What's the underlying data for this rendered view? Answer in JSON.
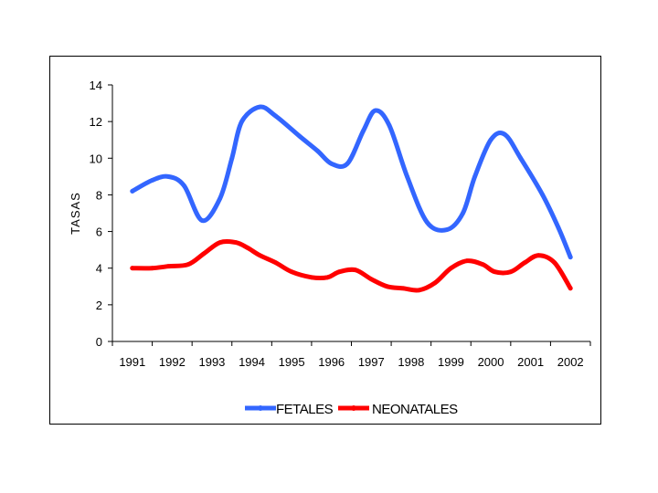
{
  "chart_data": {
    "type": "line",
    "title": "",
    "xlabel": "",
    "ylabel": "TASAS",
    "ylim": [
      0,
      14
    ],
    "yticks": [
      0,
      2,
      4,
      6,
      8,
      10,
      12,
      14
    ],
    "categories": [
      "1991",
      "1992",
      "1993",
      "1994",
      "1995",
      "1996",
      "1997",
      "1998",
      "1999",
      "2000",
      "2001",
      "2002"
    ],
    "grid": false,
    "legend_position": "bottom",
    "smooth": true,
    "series": [
      {
        "name": "FETALES",
        "color": "#3366ff",
        "x": [
          1991.0,
          1991.5,
          1991.9,
          1992.3,
          1992.75,
          1993.2,
          1993.5,
          1993.75,
          1994.2,
          1994.6,
          1995.2,
          1995.65,
          1996.0,
          1996.4,
          1996.8,
          1997.1,
          1997.45,
          1997.9,
          1998.4,
          1998.9,
          1999.3,
          1999.6,
          2000.0,
          2000.35,
          2000.75,
          2001.3,
          2001.7,
          2002.0
        ],
        "values": [
          8.2,
          8.8,
          9.0,
          8.5,
          6.6,
          7.8,
          10.0,
          12.0,
          12.8,
          12.3,
          11.2,
          10.4,
          9.7,
          9.7,
          11.5,
          12.6,
          11.8,
          9.0,
          6.5,
          6.1,
          7.0,
          9.0,
          11.0,
          11.3,
          10.0,
          8.0,
          6.2,
          4.6
        ]
      },
      {
        "name": "NEONATALES",
        "color": "#ff0000",
        "x": [
          1991.0,
          1991.5,
          1991.9,
          1992.4,
          1992.8,
          1993.2,
          1993.6,
          1993.9,
          1994.2,
          1994.6,
          1995.0,
          1995.5,
          1995.9,
          1996.2,
          1996.6,
          1997.0,
          1997.4,
          1997.8,
          1998.2,
          1998.6,
          1999.0,
          1999.4,
          1999.8,
          2000.1,
          2000.5,
          2000.85,
          2001.2,
          2001.6,
          2002.0
        ],
        "values": [
          4.0,
          4.0,
          4.1,
          4.2,
          4.8,
          5.4,
          5.4,
          5.1,
          4.7,
          4.3,
          3.8,
          3.5,
          3.5,
          3.8,
          3.9,
          3.4,
          3.0,
          2.9,
          2.8,
          3.2,
          4.0,
          4.4,
          4.2,
          3.8,
          3.8,
          4.3,
          4.7,
          4.3,
          2.9
        ]
      }
    ]
  }
}
